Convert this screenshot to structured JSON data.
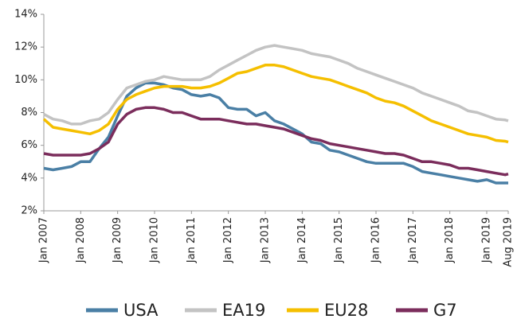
{
  "chart_data": {
    "type": "line",
    "x": [
      2007,
      2007.25,
      2007.5,
      2007.75,
      2008,
      2008.25,
      2008.5,
      2008.75,
      2009,
      2009.25,
      2009.5,
      2009.75,
      2010,
      2010.25,
      2010.5,
      2010.75,
      2011,
      2011.25,
      2011.5,
      2011.75,
      2012,
      2012.25,
      2012.5,
      2012.75,
      2013,
      2013.25,
      2013.5,
      2013.75,
      2014,
      2014.25,
      2014.5,
      2014.75,
      2015,
      2015.25,
      2015.5,
      2015.75,
      2016,
      2016.25,
      2016.5,
      2016.75,
      2017,
      2017.25,
      2017.5,
      2017.75,
      2018,
      2018.25,
      2018.5,
      2018.75,
      2019,
      2019.25,
      2019.5,
      2019.583
    ],
    "series": [
      {
        "name": "USA",
        "color": "#4a7fa5",
        "values": [
          4.6,
          4.5,
          4.6,
          4.7,
          5.0,
          5.0,
          5.8,
          6.5,
          7.8,
          9.0,
          9.5,
          9.8,
          9.8,
          9.7,
          9.5,
          9.4,
          9.1,
          9.0,
          9.1,
          8.9,
          8.3,
          8.2,
          8.2,
          7.8,
          8.0,
          7.5,
          7.3,
          7.0,
          6.7,
          6.2,
          6.1,
          5.7,
          5.6,
          5.4,
          5.2,
          5.0,
          4.9,
          4.9,
          4.9,
          4.9,
          4.7,
          4.4,
          4.3,
          4.2,
          4.1,
          4.0,
          3.9,
          3.8,
          3.9,
          3.7,
          3.7,
          3.7
        ]
      },
      {
        "name": "EA19",
        "color": "#c3c3c3",
        "values": [
          7.9,
          7.6,
          7.5,
          7.3,
          7.3,
          7.5,
          7.6,
          8.0,
          8.8,
          9.5,
          9.7,
          9.9,
          10.0,
          10.2,
          10.1,
          10.0,
          10.0,
          10.0,
          10.2,
          10.6,
          10.9,
          11.2,
          11.5,
          11.8,
          12.0,
          12.1,
          12.0,
          11.9,
          11.8,
          11.6,
          11.5,
          11.4,
          11.2,
          11.0,
          10.7,
          10.5,
          10.3,
          10.1,
          9.9,
          9.7,
          9.5,
          9.2,
          9.0,
          8.8,
          8.6,
          8.4,
          8.1,
          8.0,
          7.8,
          7.6,
          7.55,
          7.5
        ]
      },
      {
        "name": "EU28",
        "color": "#f5bf00",
        "values": [
          7.6,
          7.1,
          7.0,
          6.9,
          6.8,
          6.7,
          6.9,
          7.3,
          8.2,
          8.8,
          9.1,
          9.3,
          9.5,
          9.6,
          9.6,
          9.6,
          9.5,
          9.5,
          9.6,
          9.8,
          10.1,
          10.4,
          10.5,
          10.7,
          10.9,
          10.9,
          10.8,
          10.6,
          10.4,
          10.2,
          10.1,
          10.0,
          9.8,
          9.6,
          9.4,
          9.2,
          8.9,
          8.7,
          8.6,
          8.4,
          8.1,
          7.8,
          7.5,
          7.3,
          7.1,
          6.9,
          6.7,
          6.6,
          6.5,
          6.3,
          6.25,
          6.2
        ]
      },
      {
        "name": "G7",
        "color": "#7b2d5c",
        "values": [
          5.5,
          5.4,
          5.4,
          5.4,
          5.4,
          5.5,
          5.8,
          6.2,
          7.3,
          7.9,
          8.2,
          8.3,
          8.3,
          8.2,
          8.0,
          8.0,
          7.8,
          7.6,
          7.6,
          7.6,
          7.5,
          7.4,
          7.3,
          7.3,
          7.2,
          7.1,
          7.0,
          6.8,
          6.6,
          6.4,
          6.3,
          6.1,
          6.0,
          5.9,
          5.8,
          5.7,
          5.6,
          5.5,
          5.5,
          5.4,
          5.2,
          5.0,
          5.0,
          4.9,
          4.8,
          4.6,
          4.6,
          4.5,
          4.4,
          4.3,
          4.2,
          4.25
        ]
      }
    ],
    "xlim": [
      2007,
      2019.583
    ],
    "xticks": [
      {
        "value": 2007,
        "label": "Jan 2007"
      },
      {
        "value": 2008,
        "label": "Jan 2008"
      },
      {
        "value": 2009,
        "label": "Jan 2009"
      },
      {
        "value": 2010,
        "label": "Jan 2010"
      },
      {
        "value": 2011,
        "label": "Jan 2011"
      },
      {
        "value": 2012,
        "label": "Jan 2012"
      },
      {
        "value": 2013,
        "label": "Jan 2013"
      },
      {
        "value": 2014,
        "label": "Jan 2014"
      },
      {
        "value": 2015,
        "label": "Jan 2015"
      },
      {
        "value": 2016,
        "label": "Jan 2016"
      },
      {
        "value": 2017,
        "label": "Jan 2017"
      },
      {
        "value": 2018,
        "label": "Jan 2018"
      },
      {
        "value": 2019,
        "label": "Jan 2019"
      },
      {
        "value": 2019.583,
        "label": "Aug 2019"
      }
    ],
    "ylim": [
      2,
      14
    ],
    "yticks": [
      {
        "value": 2,
        "label": "2%"
      },
      {
        "value": 4,
        "label": "4%"
      },
      {
        "value": 6,
        "label": "6%"
      },
      {
        "value": 8,
        "label": "8%"
      },
      {
        "value": 10,
        "label": "10%"
      },
      {
        "value": 12,
        "label": "12%"
      },
      {
        "value": 14,
        "label": "14%"
      }
    ],
    "grid": false,
    "legend": "bottom"
  }
}
